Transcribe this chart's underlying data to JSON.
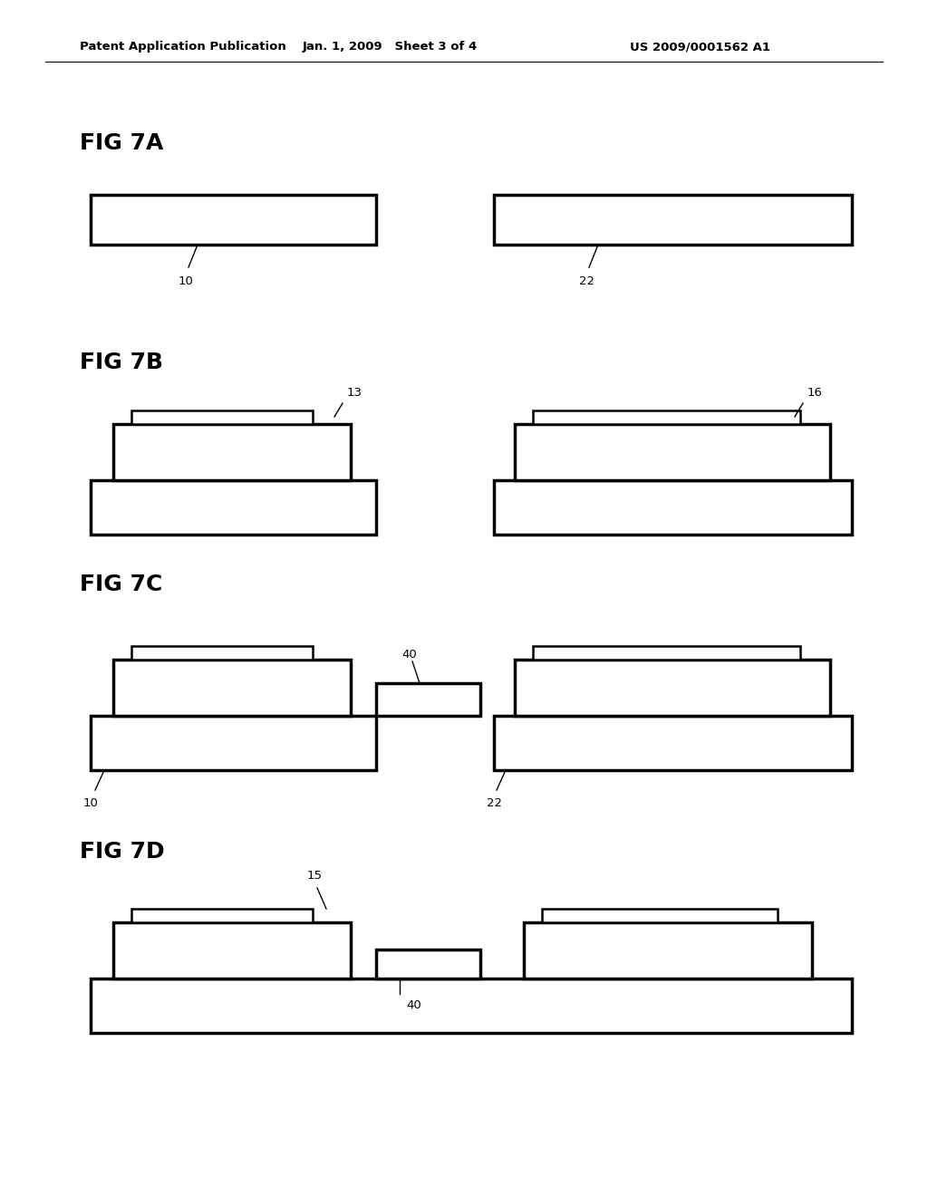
{
  "bg_color": "#ffffff",
  "header_left": "Patent Application Publication",
  "header_mid": "Jan. 1, 2009   Sheet 3 of 4",
  "header_right": "US 2009/0001562 A1"
}
